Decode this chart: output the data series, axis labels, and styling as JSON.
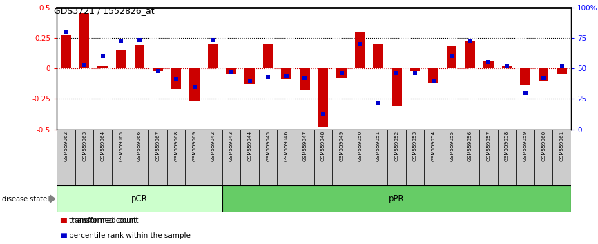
{
  "title": "GDS3721 / 1552826_at",
  "samples": [
    "GSM559062",
    "GSM559063",
    "GSM559064",
    "GSM559065",
    "GSM559066",
    "GSM559067",
    "GSM559068",
    "GSM559069",
    "GSM559042",
    "GSM559043",
    "GSM559044",
    "GSM559045",
    "GSM559046",
    "GSM559047",
    "GSM559048",
    "GSM559049",
    "GSM559050",
    "GSM559051",
    "GSM559052",
    "GSM559053",
    "GSM559054",
    "GSM559055",
    "GSM559056",
    "GSM559057",
    "GSM559058",
    "GSM559059",
    "GSM559060",
    "GSM559061"
  ],
  "transformed_count": [
    0.27,
    0.45,
    0.02,
    0.15,
    0.19,
    -0.02,
    -0.17,
    -0.27,
    0.2,
    -0.05,
    -0.13,
    0.2,
    -0.09,
    -0.18,
    -0.48,
    -0.08,
    0.3,
    0.2,
    -0.31,
    -0.02,
    -0.12,
    0.18,
    0.22,
    0.06,
    0.02,
    -0.14,
    -0.1,
    -0.05
  ],
  "percentile_rank": [
    80,
    53,
    60,
    72,
    73,
    48,
    41,
    35,
    73,
    47,
    40,
    43,
    44,
    42,
    13,
    46,
    70,
    21,
    46,
    46,
    40,
    60,
    72,
    55,
    52,
    30,
    42,
    52
  ],
  "pCR_count": 9,
  "pPR_count": 19,
  "ylim_left": [
    -0.5,
    0.5
  ],
  "ylim_right": [
    0,
    100
  ],
  "yticks_left": [
    -0.5,
    -0.25,
    0.0,
    0.25,
    0.5
  ],
  "yticks_right": [
    0,
    25,
    50,
    75,
    100
  ],
  "ytick_labels_right": [
    "0",
    "25",
    "50",
    "75",
    "100%"
  ],
  "bar_color": "#cc0000",
  "dot_color": "#0000cc",
  "zero_line_color": "#cc0000",
  "pCR_color": "#ccffcc",
  "pPR_color": "#66cc66",
  "tick_label_bg": "#cccccc",
  "bar_width": 0.55,
  "dot_size": 18
}
